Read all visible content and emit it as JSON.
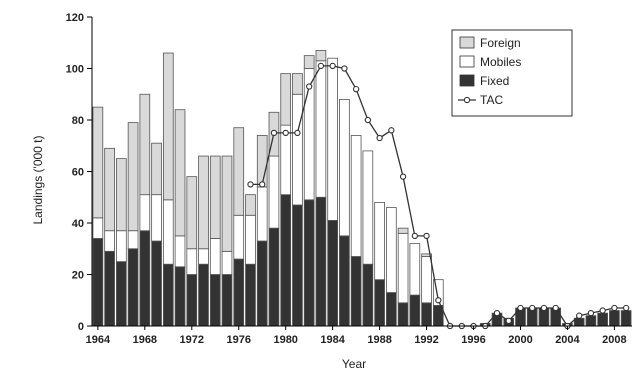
{
  "chart_data": {
    "type": "bar",
    "stacked": true,
    "xlabel": "Year",
    "ylabel": "Landings ('000 t)",
    "ylim": [
      0,
      120
    ],
    "yticks": [
      0,
      20,
      40,
      60,
      80,
      100,
      120
    ],
    "xtick_labels": [
      "1964",
      "1968",
      "1972",
      "1976",
      "1980",
      "1984",
      "1988",
      "1992",
      "1996",
      "2000",
      "2004",
      "2008"
    ],
    "x": [
      1964,
      1965,
      1966,
      1967,
      1968,
      1969,
      1970,
      1971,
      1972,
      1973,
      1974,
      1975,
      1976,
      1977,
      1978,
      1979,
      1980,
      1981,
      1982,
      1983,
      1984,
      1985,
      1986,
      1987,
      1988,
      1989,
      1990,
      1991,
      1992,
      1993,
      1994,
      1995,
      1996,
      1997,
      1998,
      1999,
      2000,
      2001,
      2002,
      2003,
      2004,
      2005,
      2006,
      2007,
      2008,
      2009
    ],
    "legend_position": "top-right",
    "series": [
      {
        "name": "Fixed",
        "kind": "bar",
        "color": "#333333",
        "values": [
          34,
          29,
          25,
          30,
          37,
          33,
          24,
          23,
          20,
          24,
          20,
          20,
          26,
          24,
          33,
          38,
          51,
          47,
          49,
          50,
          41,
          35,
          27,
          24,
          18,
          13,
          9,
          12,
          9,
          8,
          0,
          0,
          0,
          1,
          5,
          3,
          7,
          7,
          7,
          7,
          1,
          3,
          4,
          5,
          6,
          6
        ]
      },
      {
        "name": "Mobiles",
        "kind": "bar",
        "color": "#ffffff",
        "values": [
          8,
          8,
          12,
          7,
          14,
          18,
          25,
          12,
          10,
          6,
          14,
          9,
          17,
          19,
          21,
          28,
          27,
          43,
          51,
          53,
          63,
          53,
          47,
          44,
          30,
          33,
          27,
          20,
          18,
          10,
          0,
          0,
          0,
          0,
          0,
          0,
          0,
          0,
          0,
          0,
          0,
          0,
          0,
          0,
          0,
          0
        ]
      },
      {
        "name": "Foreign",
        "kind": "bar",
        "color": "#d9d9d9",
        "values": [
          43,
          32,
          28,
          42,
          39,
          20,
          57,
          49,
          28,
          36,
          32,
          37,
          34,
          8,
          20,
          17,
          20,
          8,
          5,
          4,
          0,
          0,
          0,
          0,
          0,
          0,
          2,
          0,
          1,
          0,
          0,
          0,
          0,
          0,
          0,
          0,
          0,
          0,
          0,
          0,
          0,
          0,
          0,
          0,
          0,
          0
        ]
      },
      {
        "name": "TAC",
        "kind": "line",
        "color": "#333333",
        "x": [
          1977,
          1978,
          1979,
          1980,
          1981,
          1982,
          1983,
          1984,
          1985,
          1986,
          1987,
          1988,
          1989,
          1990,
          1991,
          1992,
          1993,
          1994,
          1995,
          1996,
          1997,
          1998,
          1999,
          2000,
          2001,
          2002,
          2003,
          2004,
          2005,
          2006,
          2007,
          2008,
          2009
        ],
        "values": [
          55,
          55,
          75,
          75,
          75,
          93,
          101,
          101,
          100,
          92,
          80,
          73,
          76,
          58,
          35,
          35,
          10,
          0,
          0,
          0,
          0,
          5,
          2,
          7,
          7,
          7,
          7,
          0,
          4,
          5,
          6,
          7,
          7
        ]
      }
    ]
  }
}
